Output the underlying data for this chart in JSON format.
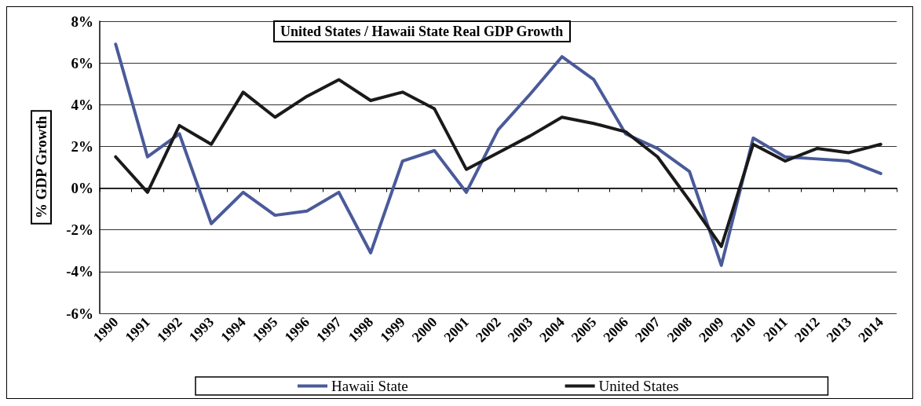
{
  "chart_data": {
    "type": "line",
    "title": "United States / Hawaii State Real GDP Growth",
    "ylabel": "% GDP Growth",
    "categories": [
      "1990",
      "1991",
      "1992",
      "1993",
      "1994",
      "1995",
      "1996",
      "1997",
      "1998",
      "1999",
      "2000",
      "2001",
      "2002",
      "2003",
      "2004",
      "2005",
      "2006",
      "2007",
      "2008",
      "2009",
      "2010",
      "2011",
      "2012",
      "2013",
      "2014"
    ],
    "series": [
      {
        "name": "Hawaii State",
        "color": "#4a5a9a",
        "values": [
          6.9,
          1.5,
          2.6,
          -1.7,
          -0.2,
          -1.3,
          -1.1,
          -0.2,
          -3.1,
          1.3,
          1.8,
          -0.2,
          2.8,
          4.5,
          6.3,
          5.2,
          2.6,
          1.9,
          0.8,
          -3.7,
          2.4,
          1.5,
          1.4,
          1.3,
          0.7
        ]
      },
      {
        "name": "United States",
        "color": "#1a1a1a",
        "values": [
          1.5,
          -0.2,
          3.0,
          2.1,
          4.6,
          3.4,
          4.4,
          5.2,
          4.2,
          4.6,
          3.8,
          0.9,
          1.7,
          2.5,
          3.4,
          3.1,
          2.7,
          1.5,
          -0.6,
          -2.8,
          2.1,
          1.3,
          1.9,
          1.7,
          2.1
        ]
      }
    ],
    "ylim": [
      -6,
      8
    ],
    "yticks": [
      {
        "value": -6,
        "label": "-6%"
      },
      {
        "value": -4,
        "label": "-4%"
      },
      {
        "value": -2,
        "label": "-2%"
      },
      {
        "value": 0,
        "label": "0%"
      },
      {
        "value": 2,
        "label": "2%"
      },
      {
        "value": 4,
        "label": "4%"
      },
      {
        "value": 6,
        "label": "6%"
      },
      {
        "value": 8,
        "label": "8%"
      }
    ],
    "grid": "y",
    "legend": "bottom",
    "marker": "none",
    "line_style": "solid"
  }
}
